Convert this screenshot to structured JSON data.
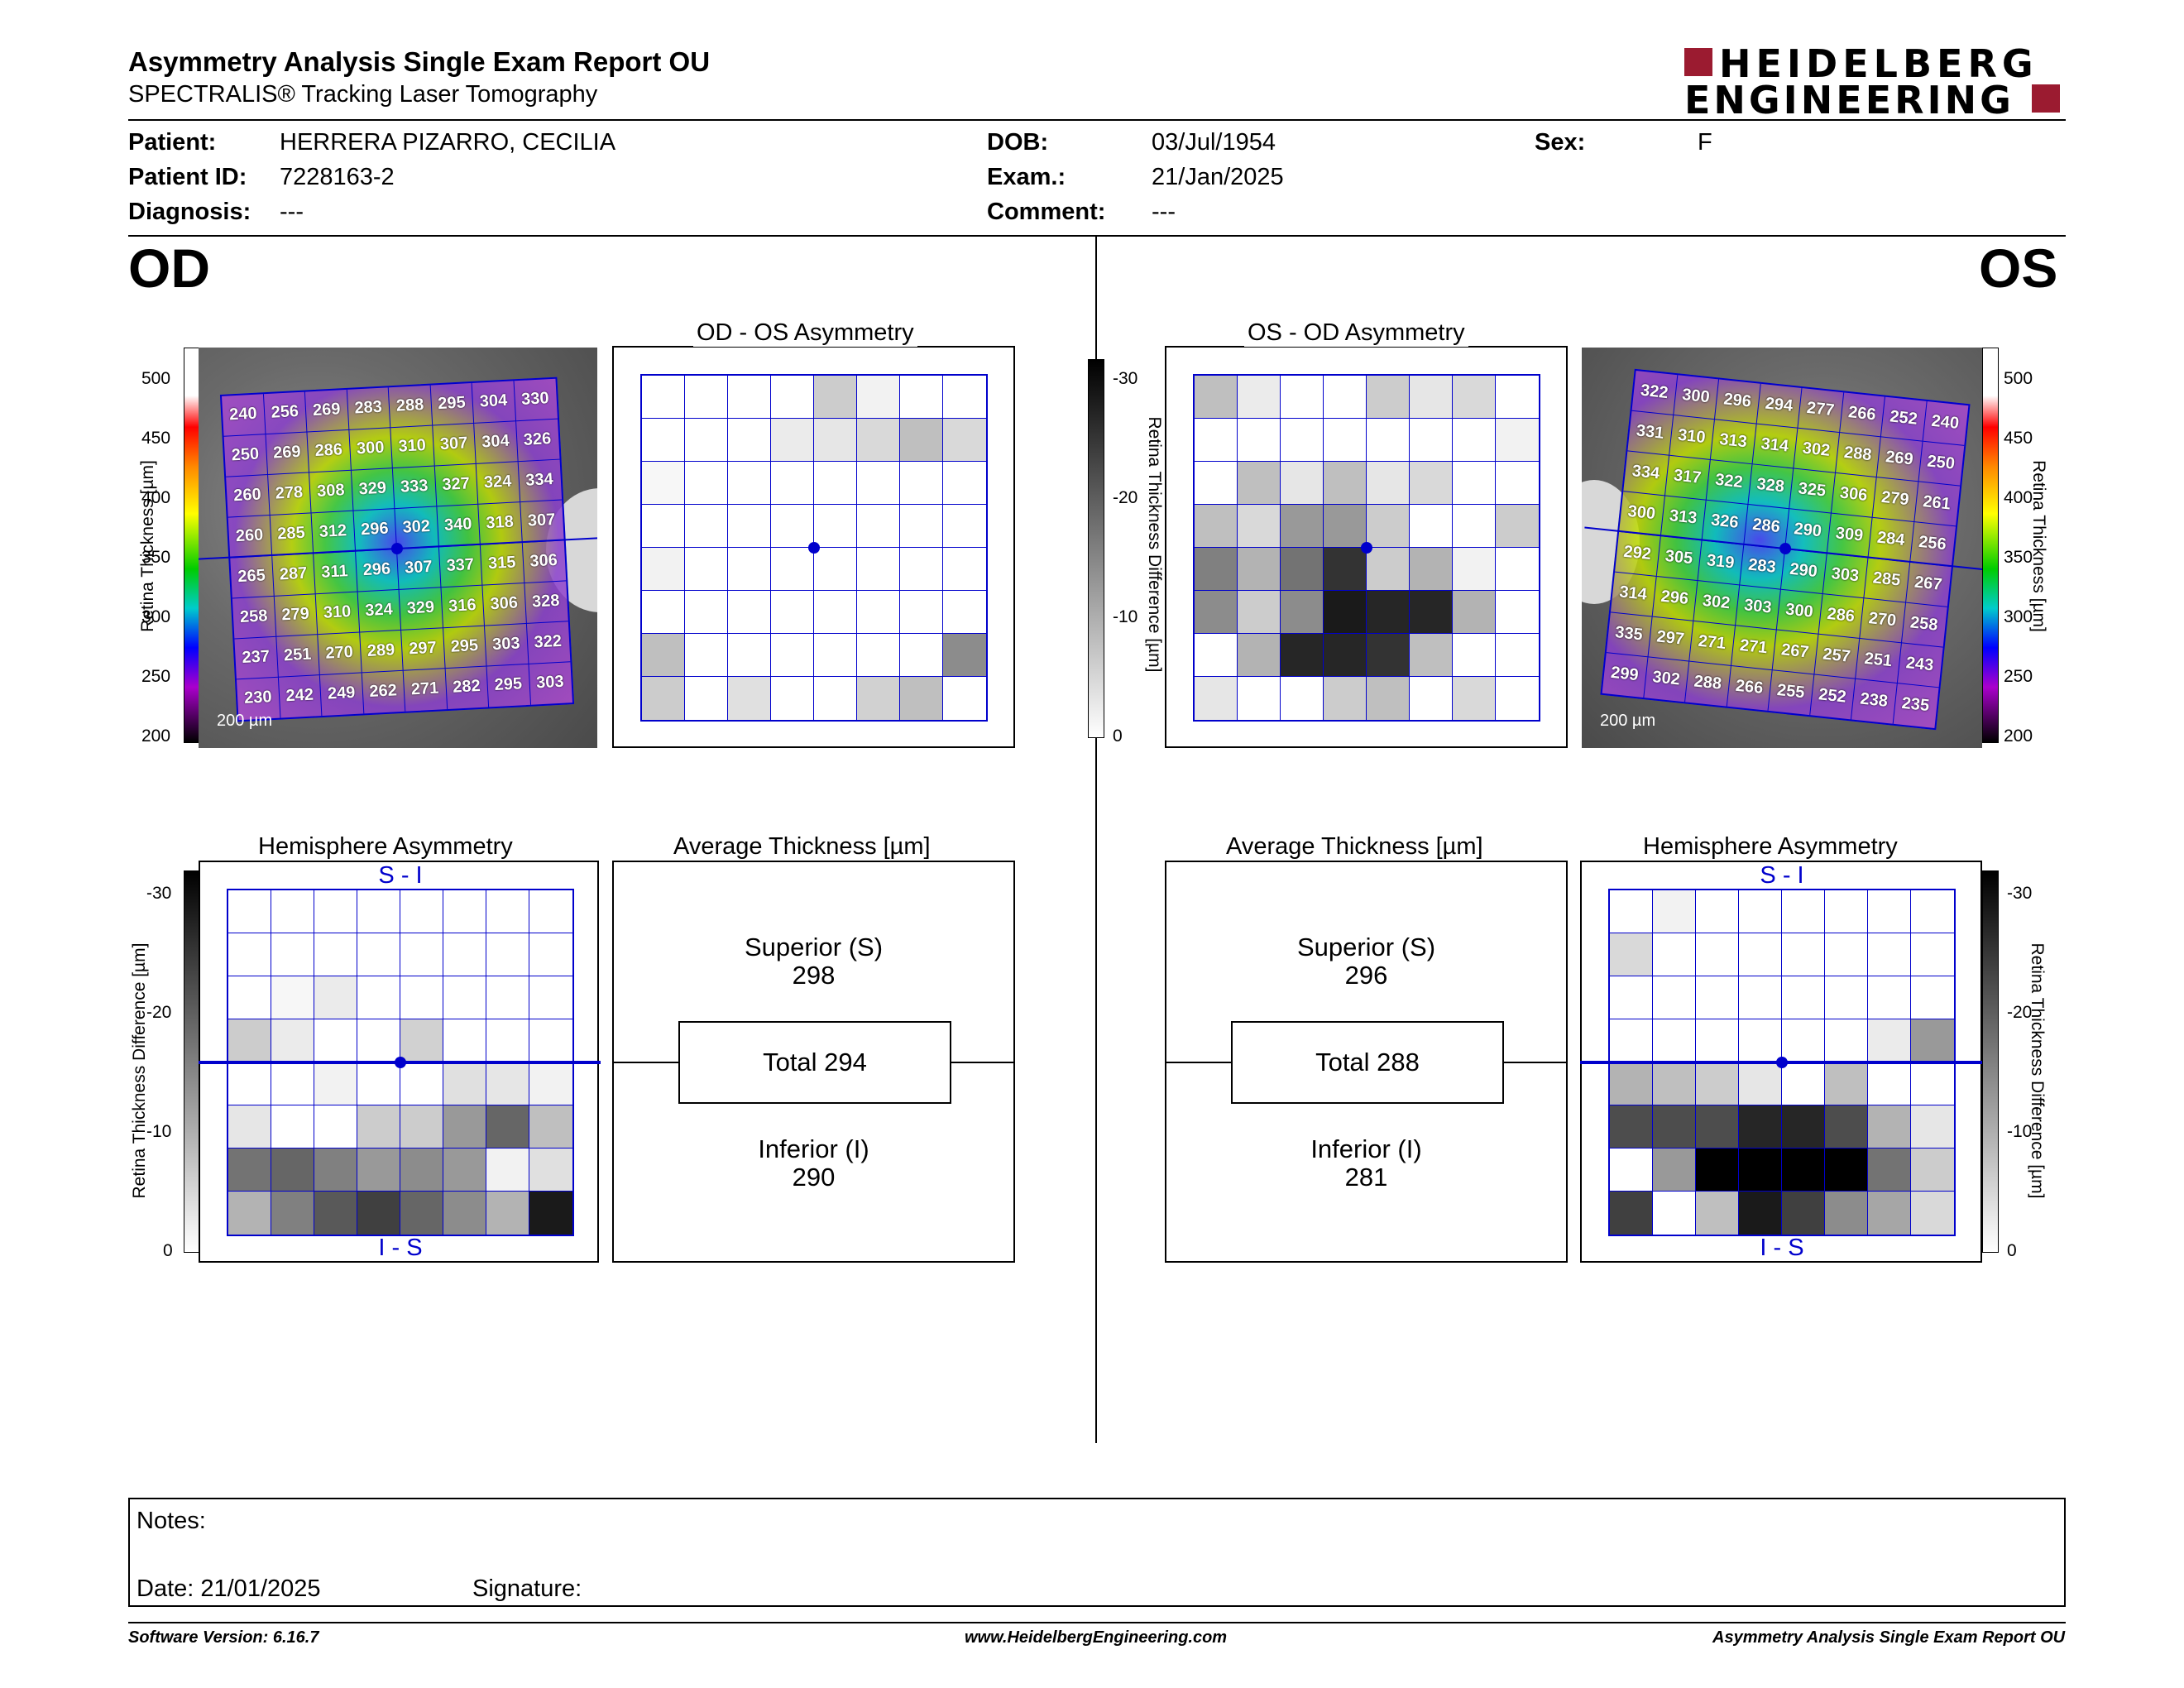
{
  "header": {
    "title": "Asymmetry Analysis Single Exam Report OU",
    "subtitle": "SPECTRALIS® Tracking Laser Tomography",
    "logo_line1": "HEIDELBERG",
    "logo_line2": "ENGINEERING",
    "brand_color": "#9b1b30"
  },
  "patient": {
    "patient_label": "Patient:",
    "patient_value": "HERRERA PIZARRO, CECILIA",
    "id_label": "Patient ID:",
    "id_value": "7228163-2",
    "diagnosis_label": "Diagnosis:",
    "diagnosis_value": "---",
    "dob_label": "DOB:",
    "dob_value": "03/Jul/1954",
    "exam_label": "Exam.:",
    "exam_value": "21/Jan/2025",
    "comment_label": "Comment:",
    "comment_value": "---",
    "sex_label": "Sex:",
    "sex_value": "F"
  },
  "eyes": {
    "od": "OD",
    "os": "OS"
  },
  "od": {
    "thickness_scale": [
      "500",
      "450",
      "400",
      "350",
      "300",
      "250",
      "200"
    ],
    "thickness_axis": "Retina Thickness [µm]",
    "scalebar": "200 µm",
    "thickness_grid": [
      [
        240,
        256,
        269,
        283,
        288,
        295,
        304,
        330
      ],
      [
        250,
        269,
        286,
        300,
        310,
        307,
        304,
        326
      ],
      [
        260,
        278,
        308,
        329,
        333,
        327,
        324,
        334
      ],
      [
        260,
        285,
        312,
        296,
        302,
        340,
        318,
        307
      ],
      [
        265,
        287,
        311,
        296,
        307,
        337,
        315,
        306
      ],
      [
        258,
        279,
        310,
        324,
        329,
        316,
        306,
        328
      ],
      [
        237,
        251,
        270,
        289,
        297,
        295,
        303,
        322
      ],
      [
        230,
        242,
        249,
        262,
        271,
        282,
        295,
        303
      ]
    ],
    "asym_title": "OD - OS Asymmetry",
    "asym_grid": [
      [
        0,
        0,
        0,
        0,
        20,
        5,
        0,
        0
      ],
      [
        0,
        0,
        0,
        8,
        10,
        15,
        25,
        15
      ],
      [
        3,
        0,
        0,
        0,
        0,
        0,
        0,
        0
      ],
      [
        0,
        0,
        0,
        0,
        0,
        0,
        0,
        0
      ],
      [
        5,
        0,
        0,
        0,
        0,
        0,
        0,
        0
      ],
      [
        0,
        0,
        0,
        0,
        0,
        0,
        0,
        0
      ],
      [
        25,
        0,
        0,
        0,
        0,
        0,
        0,
        45
      ],
      [
        20,
        0,
        12,
        0,
        0,
        18,
        25,
        0
      ]
    ],
    "hemi_title": "Hemisphere Asymmetry",
    "hemi_top": "S - I",
    "hemi_bottom": "I - S",
    "hemi_axis": "Retina Thickness Difference [µm]",
    "hemi_scale": [
      "-30",
      "-20",
      "-10",
      "0"
    ],
    "hemi_grid": [
      [
        0,
        0,
        0,
        0,
        0,
        0,
        0,
        0
      ],
      [
        0,
        0,
        0,
        0,
        0,
        0,
        0,
        0
      ],
      [
        0,
        3,
        8,
        0,
        0,
        0,
        0,
        0
      ],
      [
        20,
        8,
        0,
        0,
        18,
        0,
        0,
        0
      ],
      [
        0,
        0,
        5,
        0,
        0,
        12,
        10,
        5
      ],
      [
        10,
        0,
        0,
        20,
        20,
        40,
        60,
        25
      ],
      [
        55,
        60,
        50,
        40,
        45,
        40,
        5,
        12
      ],
      [
        30,
        50,
        65,
        75,
        60,
        45,
        30,
        90
      ]
    ],
    "avg_title": "Average Thickness [µm]",
    "superior_label": "Superior (S)",
    "superior_value": "298",
    "total_label": "Total 294",
    "inferior_label": "Inferior (I)",
    "inferior_value": "290"
  },
  "os": {
    "thickness_scale": [
      "500",
      "450",
      "400",
      "350",
      "300",
      "250",
      "200"
    ],
    "thickness_axis": "Retina Thickness [µm]",
    "scalebar": "200 µm",
    "thickness_grid": [
      [
        322,
        300,
        296,
        294,
        277,
        266,
        252,
        240
      ],
      [
        331,
        310,
        313,
        314,
        302,
        288,
        269,
        250
      ],
      [
        334,
        317,
        322,
        328,
        325,
        306,
        279,
        261
      ],
      [
        300,
        313,
        326,
        286,
        290,
        309,
        284,
        256
      ],
      [
        292,
        305,
        319,
        283,
        290,
        303,
        285,
        267
      ],
      [
        314,
        296,
        302,
        303,
        300,
        286,
        270,
        258
      ],
      [
        335,
        297,
        271,
        271,
        267,
        257,
        251,
        243
      ],
      [
        299,
        302,
        288,
        266,
        255,
        252,
        238,
        235
      ]
    ],
    "asym_title": "OS - OD Asymmetry",
    "asym_grid": [
      [
        25,
        8,
        0,
        0,
        20,
        10,
        15,
        0
      ],
      [
        0,
        0,
        0,
        0,
        0,
        0,
        0,
        5
      ],
      [
        0,
        25,
        10,
        25,
        10,
        15,
        0,
        0
      ],
      [
        25,
        15,
        40,
        40,
        20,
        0,
        0,
        20
      ],
      [
        50,
        30,
        55,
        80,
        20,
        30,
        5,
        0
      ],
      [
        45,
        20,
        45,
        90,
        85,
        85,
        30,
        0
      ],
      [
        0,
        30,
        85,
        85,
        80,
        25,
        0,
        0
      ],
      [
        10,
        0,
        0,
        20,
        25,
        0,
        15,
        0
      ]
    ],
    "hemi_title": "Hemisphere Asymmetry",
    "hemi_top": "S - I",
    "hemi_bottom": "I - S",
    "hemi_axis": "Retina Thickness Difference [µm]",
    "hemi_scale": [
      "-30",
      "-20",
      "-10",
      "0"
    ],
    "hemi_grid": [
      [
        0,
        5,
        0,
        0,
        0,
        0,
        0,
        0
      ],
      [
        15,
        0,
        0,
        0,
        0,
        0,
        0,
        0
      ],
      [
        0,
        0,
        0,
        0,
        0,
        0,
        0,
        0
      ],
      [
        0,
        0,
        0,
        0,
        0,
        0,
        8,
        40
      ],
      [
        30,
        25,
        20,
        10,
        0,
        25,
        0,
        0
      ],
      [
        70,
        70,
        70,
        85,
        85,
        70,
        30,
        10
      ],
      [
        0,
        40,
        100,
        100,
        100,
        100,
        55,
        20
      ],
      [
        75,
        0,
        25,
        90,
        75,
        45,
        35,
        15
      ]
    ],
    "avg_title": "Average Thickness [µm]",
    "superior_label": "Superior (S)",
    "superior_value": "296",
    "total_label": "Total 288",
    "inferior_label": "Inferior (I)",
    "inferior_value": "281"
  },
  "notes": {
    "notes_label": "Notes:",
    "date_label": "Date: 21/01/2025",
    "signature_label": "Signature:"
  },
  "footer": {
    "version": "Software Version: 6.16.7",
    "website": "www.HeidelbergEngineering.com",
    "report": "Asymmetry Analysis Single Exam Report OU"
  }
}
